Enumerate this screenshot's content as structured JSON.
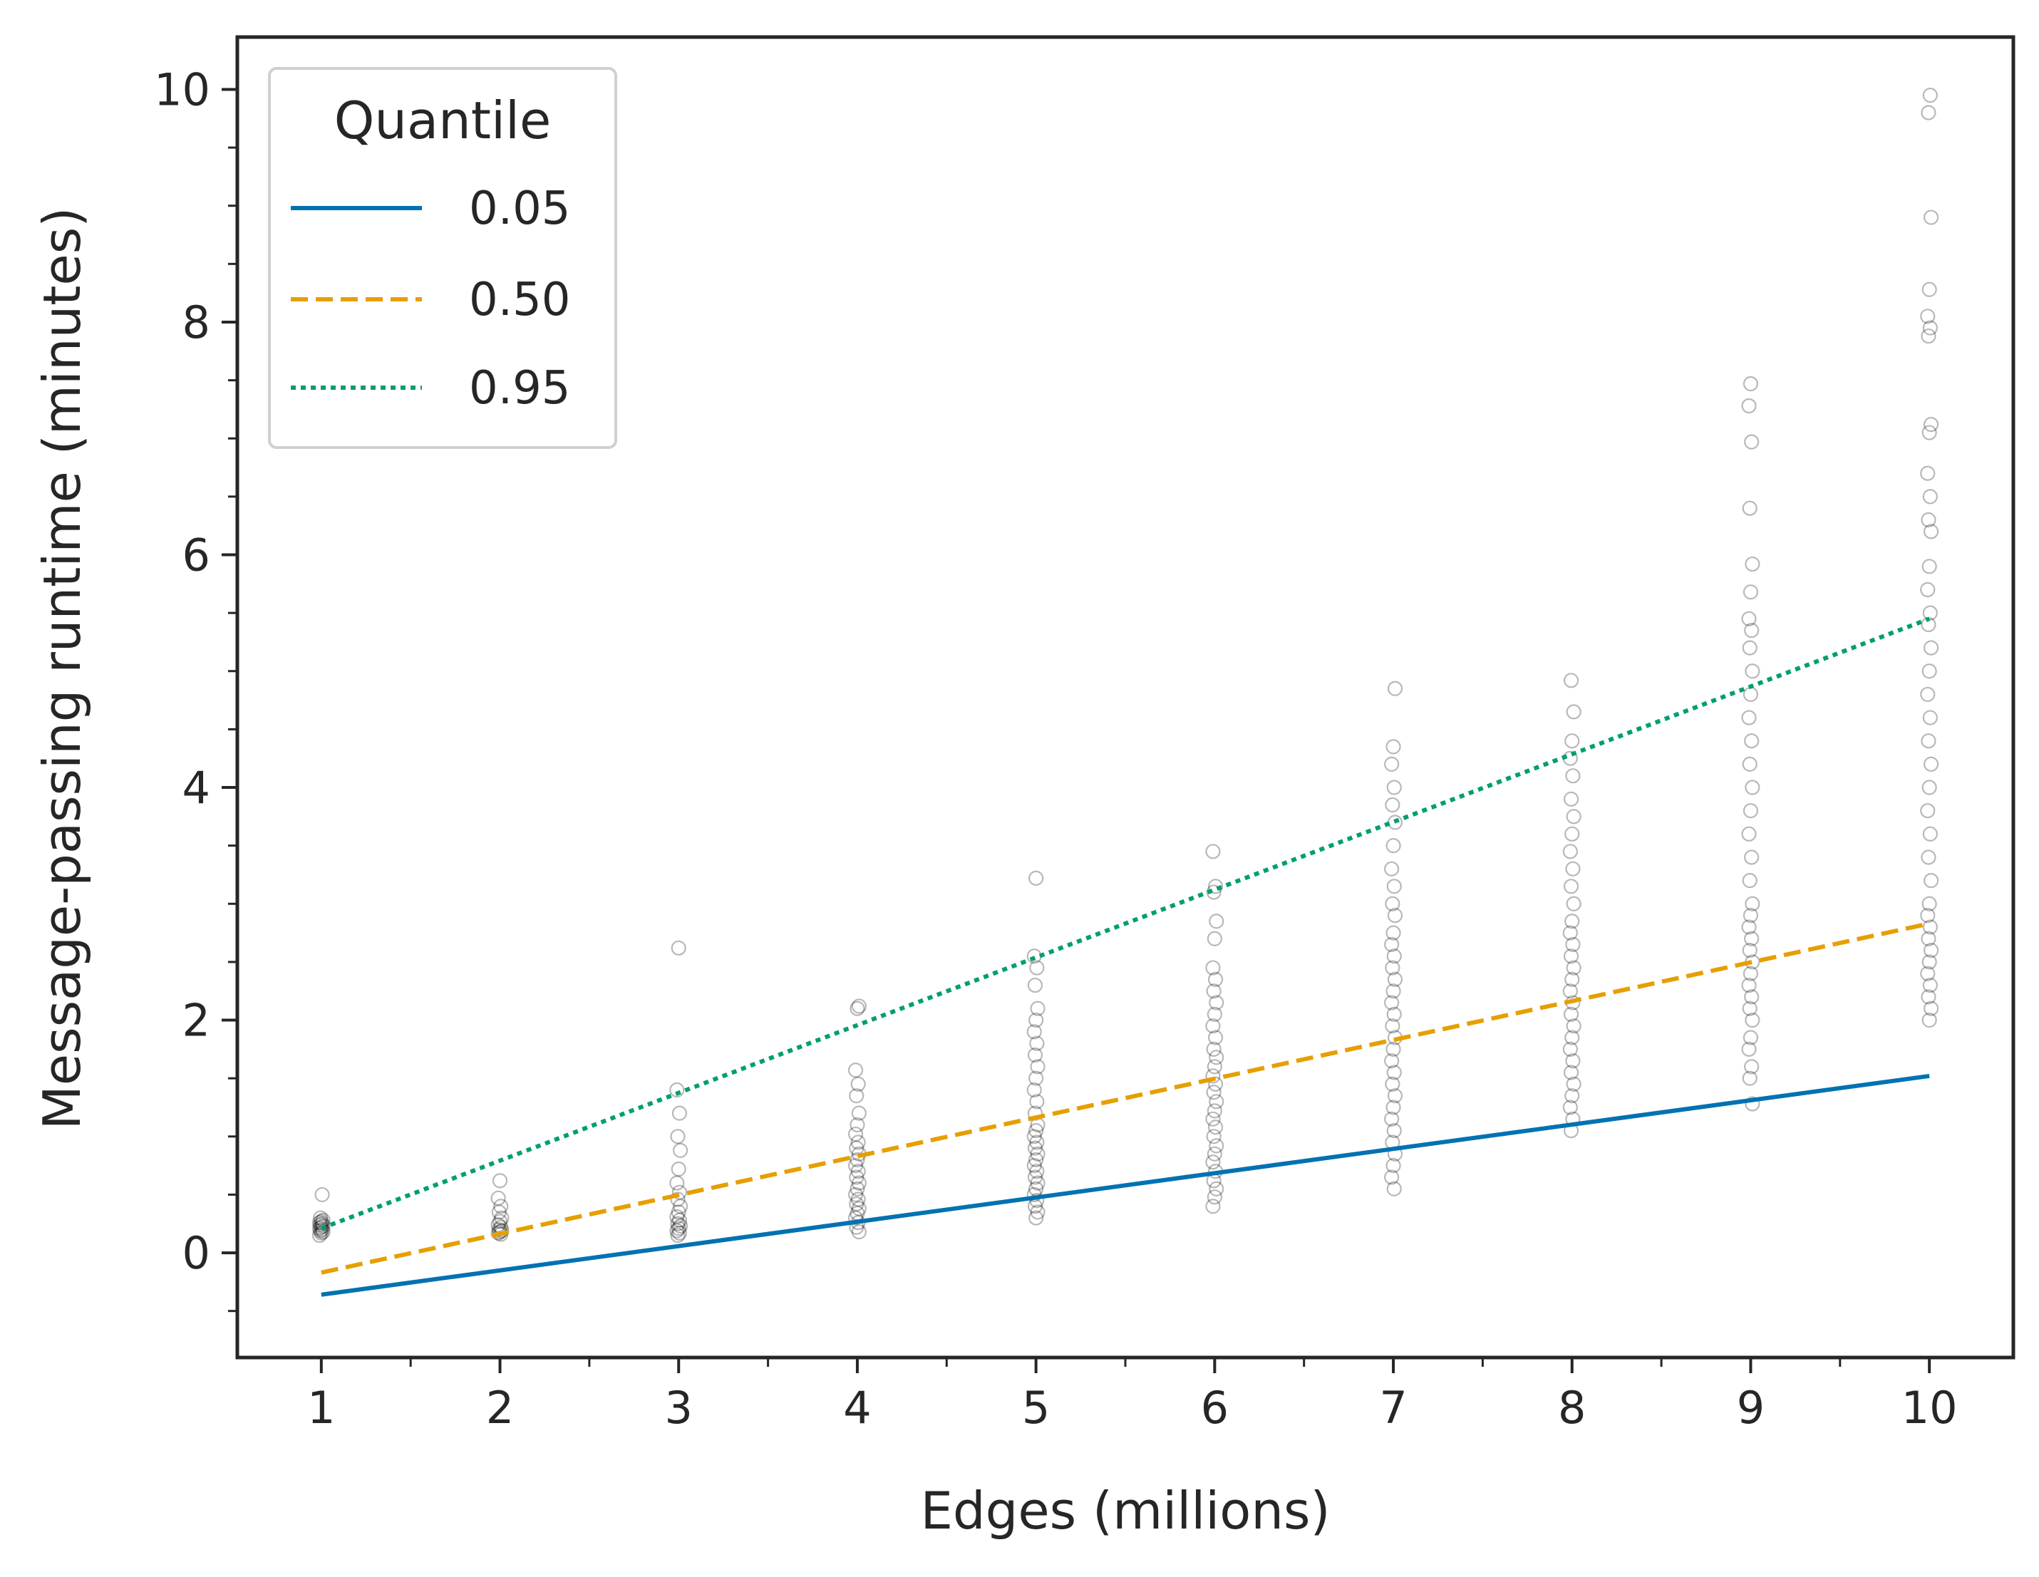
{
  "chart_data": {
    "type": "scatter",
    "title": "",
    "xlabel": "Edges (millions)",
    "ylabel": "Message-passing runtime (minutes)",
    "xlim": [
      0.53,
      10.47
    ],
    "ylim": [
      -0.9,
      10.45
    ],
    "xticks": [
      "1",
      "2",
      "3",
      "4",
      "5",
      "6",
      "7",
      "8",
      "9",
      "10"
    ],
    "yticks": [
      "0",
      "2",
      "4",
      "6",
      "8",
      "10"
    ],
    "grid": false,
    "legend": {
      "title": "Quantile",
      "placement": "top-left",
      "entries": [
        "0.05",
        "0.50",
        "0.95"
      ]
    },
    "series": [
      {
        "name": "0.05",
        "kind": "line",
        "style": "solid",
        "color": "#0072B2",
        "x": [
          1,
          10
        ],
        "y": [
          -0.36,
          1.52
        ]
      },
      {
        "name": "0.50",
        "kind": "line",
        "style": "dashed",
        "color": "#E69F00",
        "x": [
          1,
          10
        ],
        "y": [
          -0.17,
          2.83
        ]
      },
      {
        "name": "0.95",
        "kind": "line",
        "style": "dotted",
        "color": "#009E73",
        "x": [
          1,
          10
        ],
        "y": [
          0.21,
          5.45
        ]
      }
    ],
    "scatter": {
      "marker": "open-circle",
      "color": "#000000",
      "points": [
        {
          "x": 1,
          "y": [
            0.15,
            0.17,
            0.18,
            0.19,
            0.2,
            0.21,
            0.22,
            0.23,
            0.24,
            0.25,
            0.26,
            0.27,
            0.28,
            0.3,
            0.5
          ]
        },
        {
          "x": 2,
          "y": [
            0.16,
            0.17,
            0.18,
            0.19,
            0.2,
            0.22,
            0.24,
            0.27,
            0.3,
            0.35,
            0.4,
            0.47,
            0.62
          ]
        },
        {
          "x": 3,
          "y": [
            0.15,
            0.17,
            0.19,
            0.21,
            0.23,
            0.25,
            0.28,
            0.31,
            0.35,
            0.4,
            0.46,
            0.52,
            0.6,
            0.72,
            0.88,
            1.0,
            1.2,
            1.4,
            2.62
          ]
        },
        {
          "x": 4,
          "y": [
            0.18,
            0.22,
            0.26,
            0.3,
            0.34,
            0.38,
            0.42,
            0.46,
            0.5,
            0.55,
            0.6,
            0.65,
            0.7,
            0.75,
            0.8,
            0.85,
            0.9,
            0.95,
            1.02,
            1.1,
            1.2,
            1.35,
            1.45,
            1.57,
            2.1,
            2.12
          ]
        },
        {
          "x": 5,
          "y": [
            0.3,
            0.35,
            0.4,
            0.45,
            0.5,
            0.55,
            0.6,
            0.65,
            0.7,
            0.75,
            0.8,
            0.85,
            0.9,
            0.95,
            1.0,
            1.05,
            1.1,
            1.2,
            1.3,
            1.4,
            1.5,
            1.6,
            1.7,
            1.8,
            1.9,
            2.0,
            2.1,
            2.3,
            2.45,
            2.55,
            3.22
          ]
        },
        {
          "x": 6,
          "y": [
            0.4,
            0.48,
            0.55,
            0.62,
            0.7,
            0.78,
            0.85,
            0.92,
            1.0,
            1.08,
            1.15,
            1.22,
            1.3,
            1.38,
            1.45,
            1.52,
            1.6,
            1.68,
            1.75,
            1.85,
            1.95,
            2.05,
            2.15,
            2.25,
            2.35,
            2.45,
            2.7,
            2.85,
            3.1,
            3.15,
            3.45
          ]
        },
        {
          "x": 7,
          "y": [
            0.55,
            0.65,
            0.75,
            0.85,
            0.95,
            1.05,
            1.15,
            1.25,
            1.35,
            1.45,
            1.55,
            1.65,
            1.75,
            1.85,
            1.95,
            2.05,
            2.15,
            2.25,
            2.35,
            2.45,
            2.55,
            2.65,
            2.75,
            2.9,
            3.0,
            3.15,
            3.3,
            3.5,
            3.7,
            3.85,
            4.0,
            4.2,
            4.35,
            4.85
          ]
        },
        {
          "x": 8,
          "y": [
            1.05,
            1.15,
            1.25,
            1.35,
            1.45,
            1.55,
            1.65,
            1.75,
            1.85,
            1.95,
            2.05,
            2.15,
            2.25,
            2.35,
            2.45,
            2.55,
            2.65,
            2.75,
            2.85,
            3.0,
            3.15,
            3.3,
            3.45,
            3.6,
            3.75,
            3.9,
            4.1,
            4.25,
            4.4,
            4.65,
            4.92
          ]
        },
        {
          "x": 9,
          "y": [
            1.28,
            1.5,
            1.6,
            1.75,
            1.85,
            2.0,
            2.1,
            2.2,
            2.3,
            2.4,
            2.5,
            2.6,
            2.7,
            2.8,
            2.9,
            3.0,
            3.2,
            3.4,
            3.6,
            3.8,
            4.0,
            4.2,
            4.4,
            4.6,
            4.8,
            5.0,
            5.2,
            5.35,
            5.45,
            5.68,
            5.92,
            6.4,
            6.97,
            7.28,
            7.47
          ]
        },
        {
          "x": 10,
          "y": [
            2.0,
            2.1,
            2.2,
            2.3,
            2.4,
            2.5,
            2.6,
            2.7,
            2.8,
            2.9,
            3.0,
            3.2,
            3.4,
            3.6,
            3.8,
            4.0,
            4.2,
            4.4,
            4.6,
            4.8,
            5.0,
            5.2,
            5.4,
            5.5,
            5.7,
            5.9,
            6.2,
            6.3,
            6.5,
            6.7,
            7.05,
            7.12,
            7.88,
            7.95,
            8.05,
            8.28,
            8.9,
            9.8,
            9.95
          ]
        }
      ]
    }
  }
}
